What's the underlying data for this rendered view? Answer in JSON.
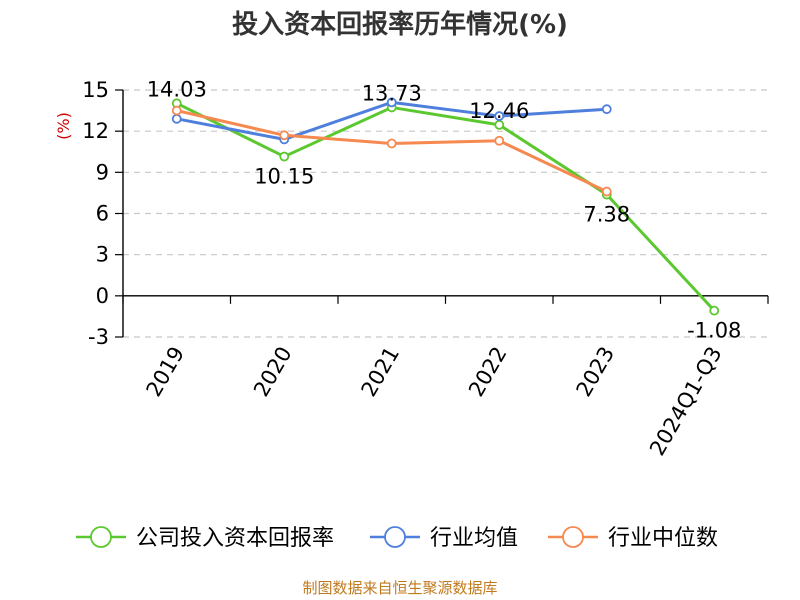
{
  "chart_data": {
    "type": "line",
    "title": "投入资本回报率历年情况(%)",
    "ylabel": "(%)",
    "categories": [
      "2019",
      "2020",
      "2021",
      "2022",
      "2023",
      "2024Q1-Q3"
    ],
    "ylim": [
      -3,
      15
    ],
    "yticks": [
      -3,
      0,
      3,
      6,
      9,
      12,
      15
    ],
    "grid": true,
    "legend_position": "bottom",
    "series": [
      {
        "name": "公司投入资本回报率",
        "color": "#5cc830",
        "values": [
          14.03,
          10.15,
          13.73,
          12.46,
          7.38,
          -1.08
        ],
        "labels": [
          "14.03",
          "10.15",
          "13.73",
          "12.46",
          "7.38",
          "-1.08"
        ]
      },
      {
        "name": "行业均值",
        "color": "#4f7fdc",
        "values": [
          12.9,
          11.4,
          14.1,
          13.1,
          13.6,
          null
        ]
      },
      {
        "name": "行业中位数",
        "color": "#f5894f",
        "values": [
          13.5,
          11.7,
          11.1,
          11.3,
          7.6,
          null
        ]
      }
    ]
  },
  "source_note": "制图数据来自恒生聚源数据库"
}
